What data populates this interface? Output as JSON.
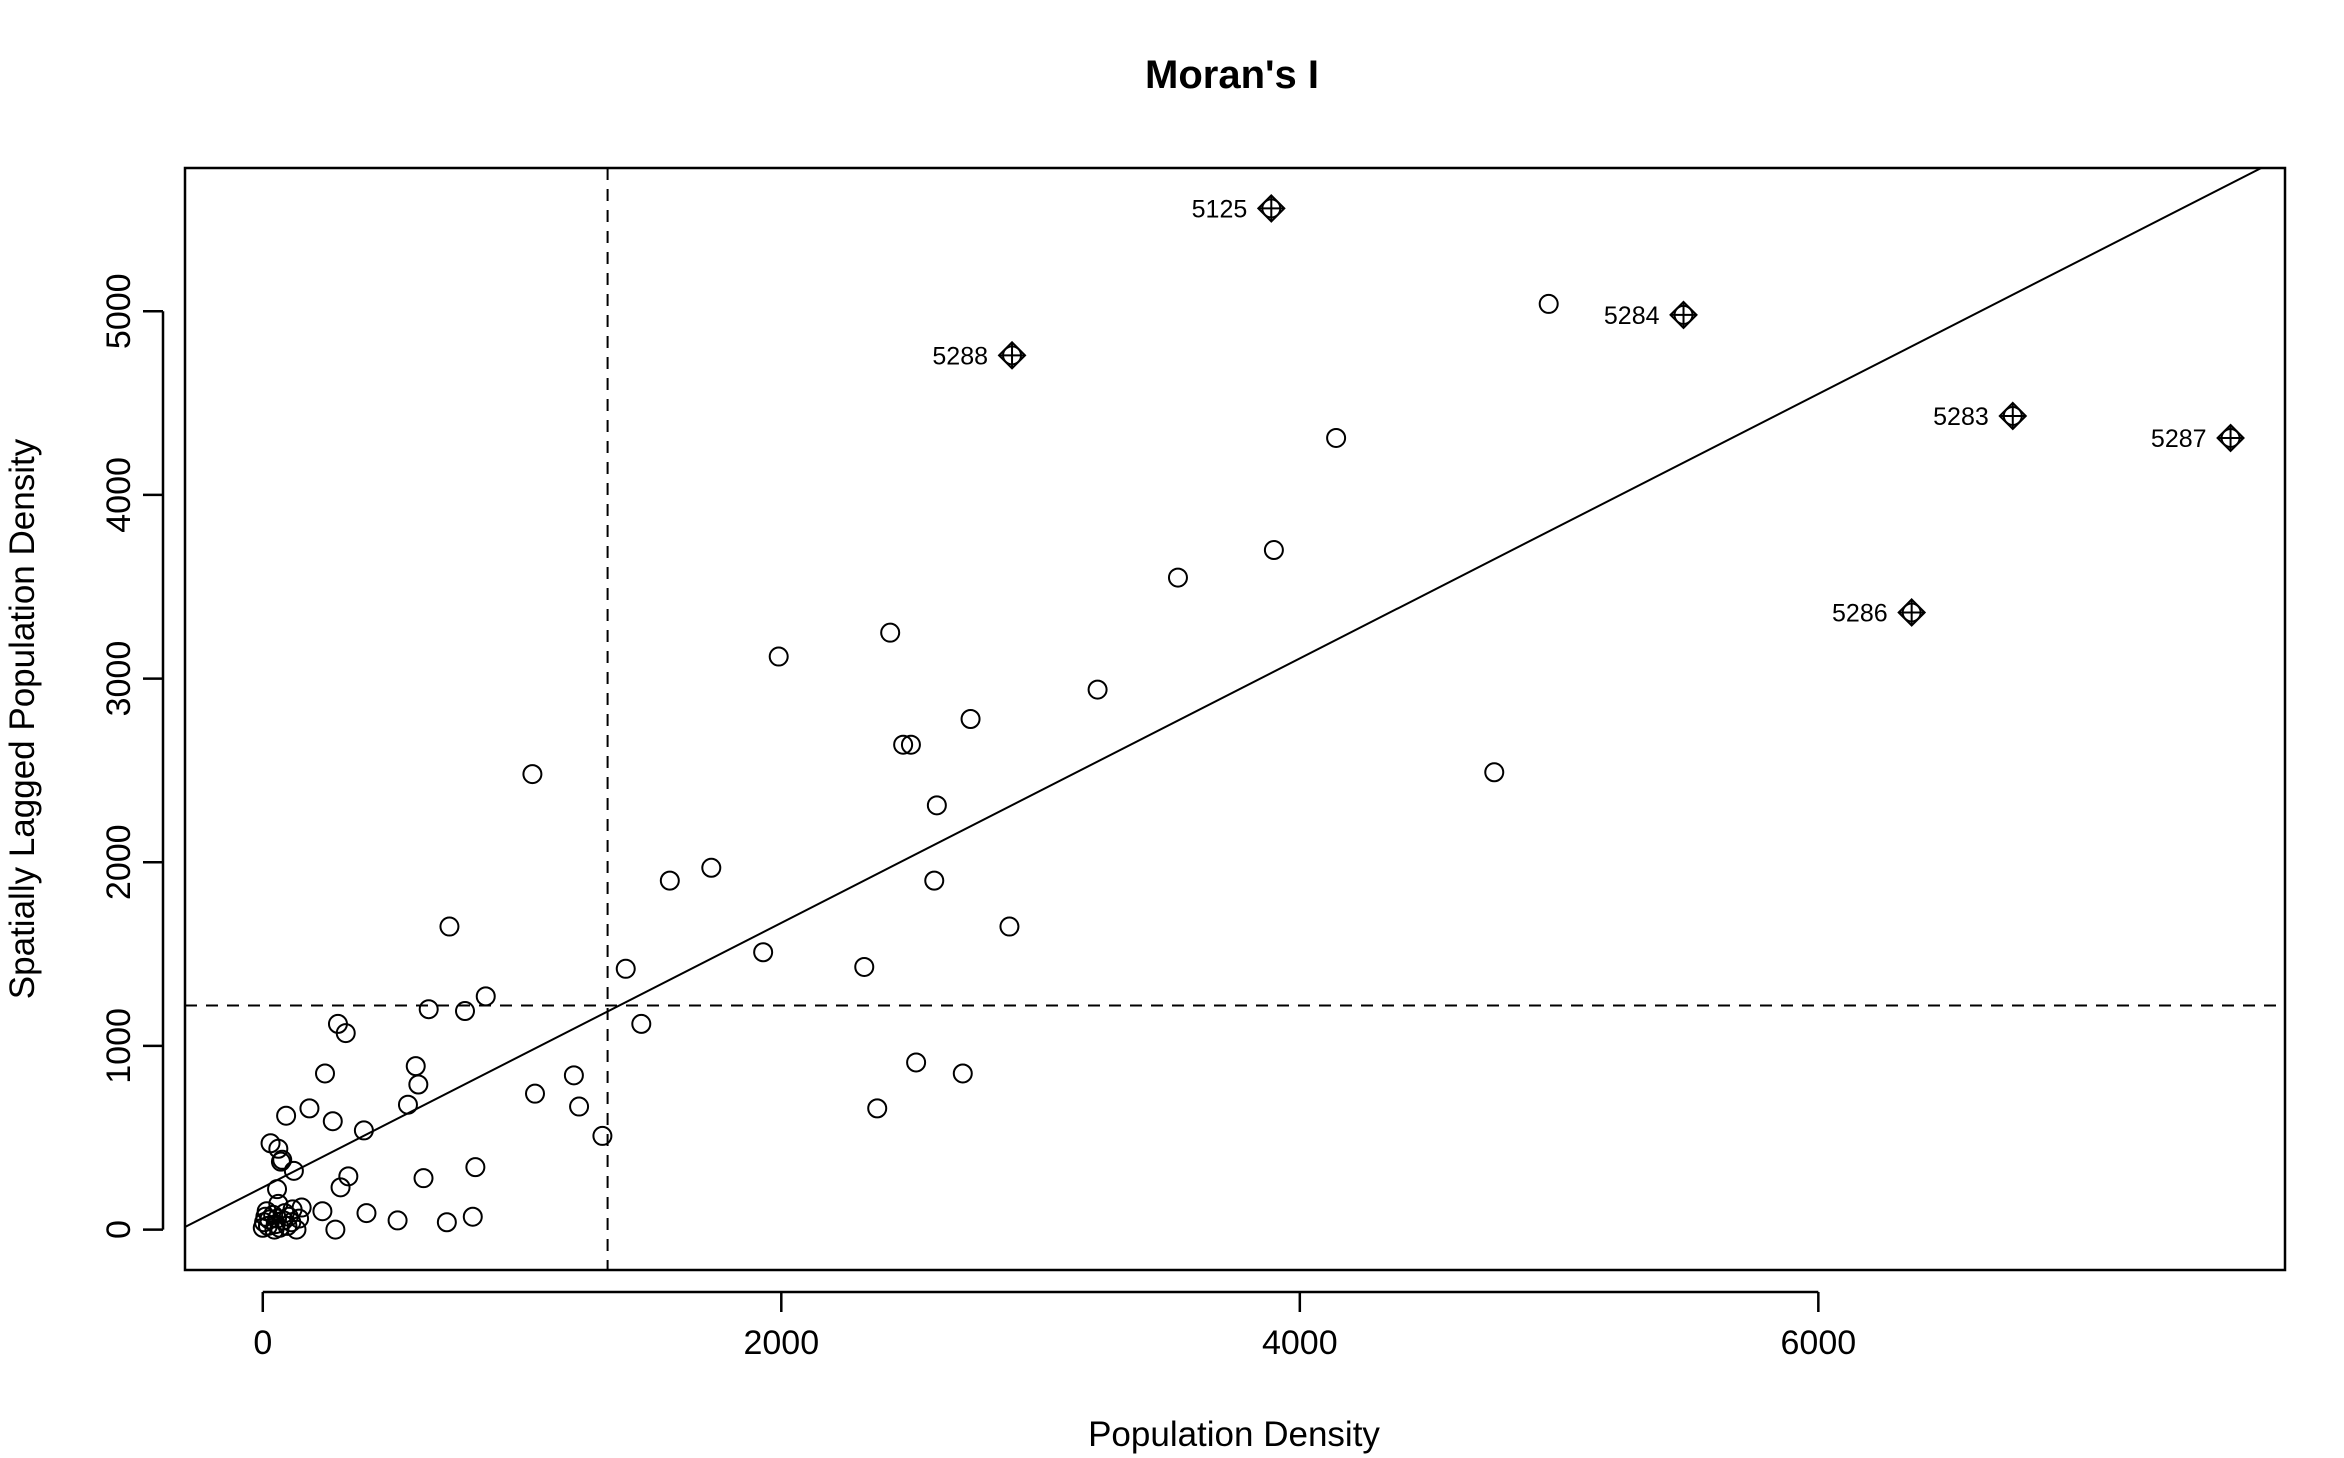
{
  "chart_data": {
    "type": "scatter",
    "title": "Moran's I",
    "xlabel": "Population Density",
    "ylabel": "Spatially Lagged Population Density",
    "xlim": [
      -300,
      7800
    ],
    "ylim": [
      -220,
      5780
    ],
    "x_ticks": [
      0,
      2000,
      4000,
      6000
    ],
    "x_tick_labels": [
      "0",
      "2000",
      "4000",
      "6000"
    ],
    "y_ticks": [
      0,
      1000,
      2000,
      3000,
      4000,
      5000
    ],
    "y_tick_labels": [
      "0",
      "1000",
      "2000",
      "3000",
      "4000",
      "5000"
    ],
    "mean_x": 1330,
    "mean_y": 1220,
    "regression_line": {
      "intercept": 230,
      "slope": 0.72
    },
    "points": [
      {
        "x": 0,
        "y": 10
      },
      {
        "x": 5,
        "y": 40
      },
      {
        "x": 10,
        "y": 70
      },
      {
        "x": 15,
        "y": 100
      },
      {
        "x": 20,
        "y": 20
      },
      {
        "x": 25,
        "y": 55
      },
      {
        "x": 30,
        "y": 470
      },
      {
        "x": 40,
        "y": 80
      },
      {
        "x": 45,
        "y": 0
      },
      {
        "x": 50,
        "y": 30
      },
      {
        "x": 55,
        "y": 60
      },
      {
        "x": 55,
        "y": 220
      },
      {
        "x": 60,
        "y": 140
      },
      {
        "x": 60,
        "y": 440
      },
      {
        "x": 65,
        "y": 10
      },
      {
        "x": 70,
        "y": 370
      },
      {
        "x": 75,
        "y": 380
      },
      {
        "x": 80,
        "y": 50
      },
      {
        "x": 85,
        "y": 90
      },
      {
        "x": 90,
        "y": 620
      },
      {
        "x": 95,
        "y": 20
      },
      {
        "x": 100,
        "y": 70
      },
      {
        "x": 110,
        "y": 40
      },
      {
        "x": 115,
        "y": 110
      },
      {
        "x": 120,
        "y": 320
      },
      {
        "x": 130,
        "y": 0
      },
      {
        "x": 140,
        "y": 60
      },
      {
        "x": 150,
        "y": 120
      },
      {
        "x": 180,
        "y": 660
      },
      {
        "x": 230,
        "y": 100
      },
      {
        "x": 240,
        "y": 850
      },
      {
        "x": 270,
        "y": 590
      },
      {
        "x": 280,
        "y": 0
      },
      {
        "x": 290,
        "y": 1120
      },
      {
        "x": 300,
        "y": 230
      },
      {
        "x": 320,
        "y": 1070
      },
      {
        "x": 330,
        "y": 290
      },
      {
        "x": 390,
        "y": 540
      },
      {
        "x": 400,
        "y": 90
      },
      {
        "x": 520,
        "y": 50
      },
      {
        "x": 560,
        "y": 680
      },
      {
        "x": 590,
        "y": 890
      },
      {
        "x": 600,
        "y": 790
      },
      {
        "x": 620,
        "y": 280
      },
      {
        "x": 640,
        "y": 1200
      },
      {
        "x": 710,
        "y": 40
      },
      {
        "x": 720,
        "y": 1650
      },
      {
        "x": 780,
        "y": 1190
      },
      {
        "x": 810,
        "y": 70
      },
      {
        "x": 820,
        "y": 340
      },
      {
        "x": 860,
        "y": 1270
      },
      {
        "x": 1040,
        "y": 2480
      },
      {
        "x": 1050,
        "y": 740
      },
      {
        "x": 1200,
        "y": 840
      },
      {
        "x": 1220,
        "y": 670
      },
      {
        "x": 1310,
        "y": 510
      },
      {
        "x": 1400,
        "y": 1420
      },
      {
        "x": 1460,
        "y": 1120
      },
      {
        "x": 1570,
        "y": 1900
      },
      {
        "x": 1730,
        "y": 1970
      },
      {
        "x": 1930,
        "y": 1510
      },
      {
        "x": 1990,
        "y": 3120
      },
      {
        "x": 2320,
        "y": 1430
      },
      {
        "x": 2370,
        "y": 660
      },
      {
        "x": 2420,
        "y": 3250
      },
      {
        "x": 2470,
        "y": 2640
      },
      {
        "x": 2500,
        "y": 2640
      },
      {
        "x": 2520,
        "y": 910
      },
      {
        "x": 2590,
        "y": 1900
      },
      {
        "x": 2600,
        "y": 2310
      },
      {
        "x": 2700,
        "y": 850
      },
      {
        "x": 2730,
        "y": 2780
      },
      {
        "x": 2880,
        "y": 1650
      },
      {
        "x": 3220,
        "y": 2940
      },
      {
        "x": 3530,
        "y": 3550
      },
      {
        "x": 3900,
        "y": 3700
      },
      {
        "x": 4140,
        "y": 4310
      },
      {
        "x": 4750,
        "y": 2490
      },
      {
        "x": 4960,
        "y": 5040
      }
    ],
    "influential_points": [
      {
        "label": "5125",
        "x": 3890,
        "y": 5560
      },
      {
        "label": "5288",
        "x": 2890,
        "y": 4760
      },
      {
        "label": "5284",
        "x": 5480,
        "y": 4980
      },
      {
        "label": "5283",
        "x": 6750,
        "y": 4430
      },
      {
        "label": "5287",
        "x": 7590,
        "y": 4310
      },
      {
        "label": "5286",
        "x": 6360,
        "y": 3360
      }
    ]
  }
}
